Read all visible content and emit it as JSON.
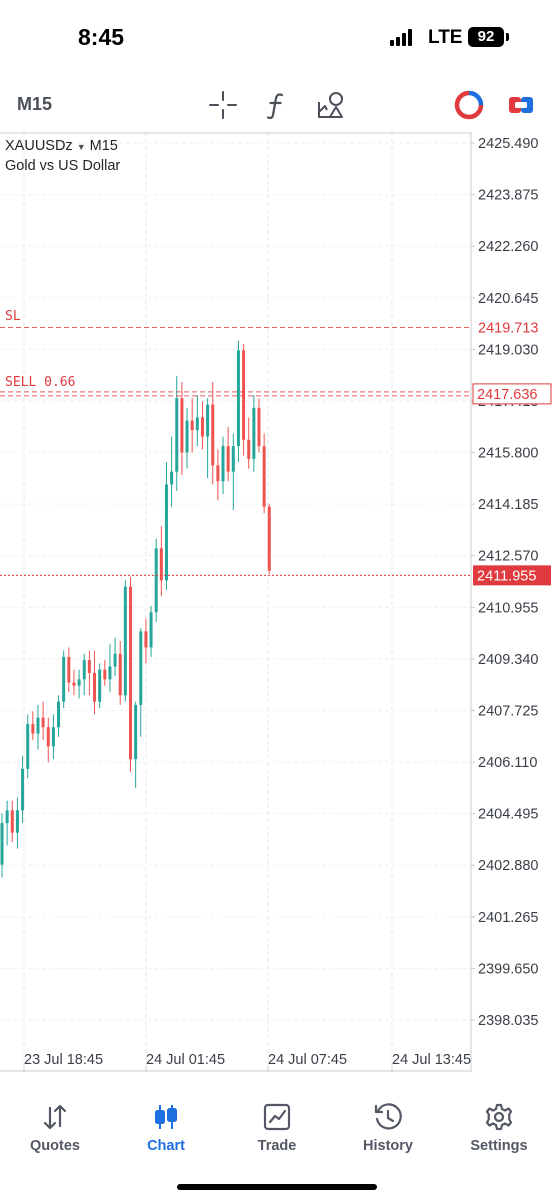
{
  "status_bar": {
    "time": "8:45",
    "network": "LTE",
    "battery": "92"
  },
  "toolbar": {
    "timeframe": "M15",
    "icons": [
      "crosshair-icon",
      "indicators-icon",
      "objects-icon",
      "one-click-trading-icon",
      "trade-button-icon"
    ],
    "accent_colors": {
      "red": "#e0393e",
      "blue": "#1e6fe0"
    }
  },
  "chart": {
    "symbol": "XAUUSDz",
    "timeframe": "M15",
    "description": "Gold vs US Dollar",
    "price_labels": [
      "2425.490",
      "2423.875",
      "2422.260",
      "2420.645",
      "2419.030",
      "2417.415",
      "2415.800",
      "2414.185",
      "2412.570",
      "2410.955",
      "2409.340",
      "2407.725",
      "2406.110",
      "2404.495",
      "2402.880",
      "2401.265",
      "2399.650",
      "2398.035"
    ],
    "time_labels": [
      "23 Jul 18:45",
      "24 Jul 01:45",
      "24 Jul 07:45",
      "24 Jul 13:45"
    ],
    "sl_label": "SL",
    "sl_price": "2419.713",
    "order_label": "SELL 0.66",
    "order_price": "2417.636",
    "current_price": "2411.955",
    "colors": {
      "bull": "#26a69a",
      "bear": "#ef5350",
      "order_line": "#e0393e"
    }
  },
  "chart_data": {
    "type": "candlestick",
    "symbol": "XAUUSDz",
    "timeframe": "M15",
    "title": "XAUUSDz M15",
    "subtitle": "Gold vs US Dollar",
    "x_tick_labels": [
      "23 Jul 18:45",
      "24 Jul 01:45",
      "24 Jul 07:45",
      "24 Jul 13:45"
    ],
    "y_tick_labels": [
      "2425.490",
      "2423.875",
      "2422.260",
      "2420.645",
      "2419.030",
      "2417.415",
      "2415.800",
      "2414.185",
      "2412.570",
      "2410.955",
      "2409.340",
      "2407.725",
      "2406.110",
      "2404.495",
      "2402.880",
      "2401.265",
      "2399.650",
      "2398.035"
    ],
    "ylim": [
      2397.0,
      2426.5
    ],
    "grid": true,
    "horizontal_levels": [
      {
        "label": "SL",
        "price": 2419.713
      },
      {
        "label": "SELL 0.66",
        "price": 2417.636
      },
      {
        "label": "current",
        "price": 2411.955
      }
    ],
    "candles": [
      {
        "o": 2402.9,
        "h": 2404.5,
        "l": 2402.5,
        "c": 2404.2
      },
      {
        "o": 2404.2,
        "h": 2404.9,
        "l": 2403.5,
        "c": 2404.6
      },
      {
        "o": 2404.6,
        "h": 2404.9,
        "l": 2403.6,
        "c": 2403.9
      },
      {
        "o": 2403.9,
        "h": 2405.0,
        "l": 2403.4,
        "c": 2404.6
      },
      {
        "o": 2404.6,
        "h": 2406.3,
        "l": 2404.2,
        "c": 2405.9
      },
      {
        "o": 2405.9,
        "h": 2407.6,
        "l": 2405.6,
        "c": 2407.3
      },
      {
        "o": 2407.3,
        "h": 2407.7,
        "l": 2406.8,
        "c": 2407.0
      },
      {
        "o": 2407.0,
        "h": 2407.9,
        "l": 2406.5,
        "c": 2407.5
      },
      {
        "o": 2407.5,
        "h": 2408.0,
        "l": 2406.8,
        "c": 2407.2
      },
      {
        "o": 2407.2,
        "h": 2407.5,
        "l": 2406.1,
        "c": 2406.6
      },
      {
        "o": 2406.6,
        "h": 2407.6,
        "l": 2406.2,
        "c": 2407.2
      },
      {
        "o": 2407.2,
        "h": 2408.2,
        "l": 2406.9,
        "c": 2408.0
      },
      {
        "o": 2408.0,
        "h": 2409.6,
        "l": 2407.8,
        "c": 2409.4
      },
      {
        "o": 2409.4,
        "h": 2409.7,
        "l": 2408.3,
        "c": 2408.6
      },
      {
        "o": 2408.6,
        "h": 2409.0,
        "l": 2408.2,
        "c": 2408.5
      },
      {
        "o": 2408.5,
        "h": 2409.0,
        "l": 2408.1,
        "c": 2408.7
      },
      {
        "o": 2408.7,
        "h": 2409.5,
        "l": 2408.2,
        "c": 2409.3
      },
      {
        "o": 2409.3,
        "h": 2409.6,
        "l": 2408.2,
        "c": 2408.9
      },
      {
        "o": 2408.9,
        "h": 2409.6,
        "l": 2407.6,
        "c": 2408.0
      },
      {
        "o": 2408.0,
        "h": 2409.2,
        "l": 2407.8,
        "c": 2409.0
      },
      {
        "o": 2409.0,
        "h": 2409.3,
        "l": 2408.5,
        "c": 2408.7
      },
      {
        "o": 2408.7,
        "h": 2409.8,
        "l": 2408.3,
        "c": 2409.1
      },
      {
        "o": 2409.1,
        "h": 2410.0,
        "l": 2408.8,
        "c": 2409.5
      },
      {
        "o": 2409.5,
        "h": 2409.9,
        "l": 2407.9,
        "c": 2408.2
      },
      {
        "o": 2408.2,
        "h": 2411.8,
        "l": 2408.0,
        "c": 2411.6
      },
      {
        "o": 2411.6,
        "h": 2411.9,
        "l": 2405.8,
        "c": 2406.2
      },
      {
        "o": 2406.2,
        "h": 2408.0,
        "l": 2405.3,
        "c": 2407.9
      },
      {
        "o": 2407.9,
        "h": 2410.3,
        "l": 2406.9,
        "c": 2410.2
      },
      {
        "o": 2410.2,
        "h": 2410.6,
        "l": 2409.2,
        "c": 2409.7
      },
      {
        "o": 2409.7,
        "h": 2411.0,
        "l": 2409.4,
        "c": 2410.8
      },
      {
        "o": 2410.8,
        "h": 2413.1,
        "l": 2410.5,
        "c": 2412.8
      },
      {
        "o": 2412.8,
        "h": 2413.5,
        "l": 2411.3,
        "c": 2411.8
      },
      {
        "o": 2411.8,
        "h": 2415.5,
        "l": 2411.5,
        "c": 2414.8
      },
      {
        "o": 2414.8,
        "h": 2416.3,
        "l": 2414.1,
        "c": 2415.2
      },
      {
        "o": 2415.2,
        "h": 2418.2,
        "l": 2414.6,
        "c": 2417.5
      },
      {
        "o": 2417.5,
        "h": 2418.0,
        "l": 2415.1,
        "c": 2415.8
      },
      {
        "o": 2415.8,
        "h": 2417.2,
        "l": 2415.3,
        "c": 2416.8
      },
      {
        "o": 2416.8,
        "h": 2417.5,
        "l": 2415.8,
        "c": 2416.5
      },
      {
        "o": 2416.5,
        "h": 2417.6,
        "l": 2416.0,
        "c": 2416.9
      },
      {
        "o": 2416.9,
        "h": 2417.4,
        "l": 2415.9,
        "c": 2416.3
      },
      {
        "o": 2416.3,
        "h": 2417.5,
        "l": 2415.0,
        "c": 2417.3
      },
      {
        "o": 2417.3,
        "h": 2418.0,
        "l": 2414.8,
        "c": 2415.4
      },
      {
        "o": 2415.4,
        "h": 2415.9,
        "l": 2414.3,
        "c": 2414.9
      },
      {
        "o": 2414.9,
        "h": 2416.3,
        "l": 2414.5,
        "c": 2416.0
      },
      {
        "o": 2416.0,
        "h": 2416.6,
        "l": 2414.9,
        "c": 2415.2
      },
      {
        "o": 2415.2,
        "h": 2416.4,
        "l": 2414.0,
        "c": 2416.0
      },
      {
        "o": 2416.0,
        "h": 2419.3,
        "l": 2415.5,
        "c": 2419.0
      },
      {
        "o": 2419.0,
        "h": 2419.2,
        "l": 2415.7,
        "c": 2416.2
      },
      {
        "o": 2416.2,
        "h": 2416.9,
        "l": 2415.3,
        "c": 2415.6
      },
      {
        "o": 2415.6,
        "h": 2417.6,
        "l": 2415.2,
        "c": 2417.2
      },
      {
        "o": 2417.2,
        "h": 2417.5,
        "l": 2415.8,
        "c": 2416.0
      },
      {
        "o": 2416.0,
        "h": 2416.4,
        "l": 2413.9,
        "c": 2414.1
      },
      {
        "o": 2414.1,
        "h": 2414.2,
        "l": 2412.0,
        "c": 2412.1
      }
    ]
  },
  "tab_bar": {
    "tabs": [
      {
        "label": "Quotes",
        "icon": "quotes-arrows-icon",
        "active": false
      },
      {
        "label": "Chart",
        "icon": "chart-candles-icon",
        "active": true
      },
      {
        "label": "Trade",
        "icon": "trade-chart-icon",
        "active": false
      },
      {
        "label": "History",
        "icon": "history-clock-icon",
        "active": false
      },
      {
        "label": "Settings",
        "icon": "settings-gear-icon",
        "active": false
      }
    ]
  }
}
